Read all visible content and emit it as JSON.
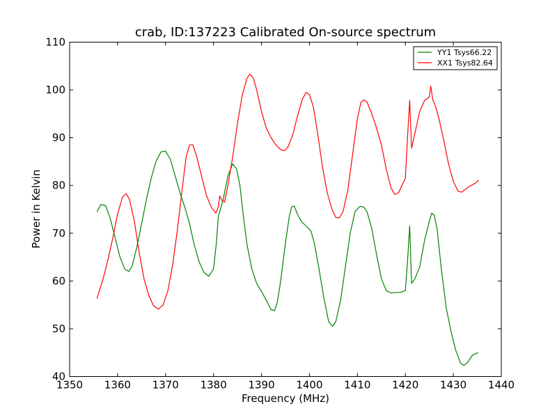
{
  "chart_data": {
    "type": "line",
    "title": "crab, ID:137223 Calibrated On-source spectrum",
    "xlabel": "Frequency (MHz)",
    "ylabel": "Power in Kelvin",
    "xlim": [
      1350,
      1440
    ],
    "ylim": [
      40,
      110
    ],
    "xticks": [
      1350,
      1360,
      1370,
      1380,
      1390,
      1400,
      1410,
      1420,
      1430,
      1440
    ],
    "yticks": [
      40,
      50,
      60,
      70,
      80,
      90,
      100,
      110
    ],
    "grid": false,
    "legend_position": "top-right",
    "series": [
      {
        "name": "YY1 Tsys66.22",
        "color": "#008000",
        "points": [
          [
            1355.7,
            74.5
          ],
          [
            1356.5,
            76.0
          ],
          [
            1357.5,
            75.8
          ],
          [
            1358.5,
            73.0
          ],
          [
            1359.5,
            69.0
          ],
          [
            1360.5,
            65.0
          ],
          [
            1361.5,
            62.5
          ],
          [
            1362.3,
            62.0
          ],
          [
            1363.0,
            63.0
          ],
          [
            1364.0,
            67.0
          ],
          [
            1365.0,
            72.0
          ],
          [
            1366.0,
            77.0
          ],
          [
            1367.0,
            81.5
          ],
          [
            1368.0,
            85.0
          ],
          [
            1369.0,
            87.0
          ],
          [
            1370.0,
            87.2
          ],
          [
            1371.0,
            85.5
          ],
          [
            1372.0,
            82.0
          ],
          [
            1373.0,
            78.5
          ],
          [
            1374.0,
            75.5
          ],
          [
            1375.0,
            72.0
          ],
          [
            1376.0,
            67.5
          ],
          [
            1377.0,
            64.0
          ],
          [
            1378.0,
            61.8
          ],
          [
            1379.0,
            61.0
          ],
          [
            1380.0,
            62.5
          ],
          [
            1380.6,
            68.0
          ],
          [
            1381.0,
            73.5
          ],
          [
            1382.0,
            77.0
          ],
          [
            1383.0,
            82.0
          ],
          [
            1384.0,
            84.5
          ],
          [
            1384.8,
            83.5
          ],
          [
            1385.5,
            80.0
          ],
          [
            1386.3,
            73.0
          ],
          [
            1387.0,
            67.5
          ],
          [
            1388.0,
            62.5
          ],
          [
            1389.0,
            59.5
          ],
          [
            1390.0,
            57.8
          ],
          [
            1391.0,
            56.0
          ],
          [
            1392.0,
            54.0
          ],
          [
            1392.7,
            53.8
          ],
          [
            1393.3,
            55.5
          ],
          [
            1394.0,
            60.0
          ],
          [
            1395.0,
            68.0
          ],
          [
            1395.8,
            73.5
          ],
          [
            1396.3,
            75.5
          ],
          [
            1396.8,
            75.7
          ],
          [
            1397.5,
            74.0
          ],
          [
            1398.3,
            72.5
          ],
          [
            1399.3,
            71.5
          ],
          [
            1400.3,
            70.5
          ],
          [
            1401.0,
            68.0
          ],
          [
            1402.0,
            62.5
          ],
          [
            1403.0,
            56.5
          ],
          [
            1404.0,
            51.5
          ],
          [
            1404.8,
            50.5
          ],
          [
            1405.5,
            51.5
          ],
          [
            1406.5,
            56.0
          ],
          [
            1407.5,
            63.0
          ],
          [
            1408.5,
            70.0
          ],
          [
            1409.5,
            74.5
          ],
          [
            1410.5,
            75.6
          ],
          [
            1411.3,
            75.5
          ],
          [
            1412.0,
            74.5
          ],
          [
            1413.0,
            71.0
          ],
          [
            1414.0,
            65.5
          ],
          [
            1415.0,
            60.5
          ],
          [
            1416.0,
            58.0
          ],
          [
            1417.0,
            57.5
          ],
          [
            1418.0,
            57.6
          ],
          [
            1419.0,
            57.6
          ],
          [
            1420.0,
            58.0
          ],
          [
            1420.5,
            65.0
          ],
          [
            1420.9,
            71.5
          ],
          [
            1421.3,
            59.5
          ],
          [
            1422.0,
            60.5
          ],
          [
            1423.0,
            63.0
          ],
          [
            1424.0,
            68.5
          ],
          [
            1425.0,
            72.5
          ],
          [
            1425.5,
            74.2
          ],
          [
            1426.0,
            73.8
          ],
          [
            1426.6,
            71.0
          ],
          [
            1427.5,
            62.5
          ],
          [
            1428.5,
            54.5
          ],
          [
            1429.5,
            49.5
          ],
          [
            1430.5,
            45.5
          ],
          [
            1431.5,
            42.8
          ],
          [
            1432.2,
            42.3
          ],
          [
            1433.0,
            43.0
          ],
          [
            1434.0,
            44.5
          ],
          [
            1435.2,
            45.0
          ]
        ]
      },
      {
        "name": "XX1 Tsys82.64",
        "color": "#ff0000",
        "points": [
          [
            1355.7,
            56.3
          ],
          [
            1357.0,
            60.5
          ],
          [
            1358.0,
            64.5
          ],
          [
            1359.0,
            69.0
          ],
          [
            1360.0,
            74.0
          ],
          [
            1361.0,
            77.5
          ],
          [
            1361.8,
            78.3
          ],
          [
            1362.5,
            77.0
          ],
          [
            1363.5,
            72.5
          ],
          [
            1364.5,
            66.0
          ],
          [
            1365.5,
            60.5
          ],
          [
            1366.5,
            57.0
          ],
          [
            1367.5,
            54.8
          ],
          [
            1368.5,
            54.1
          ],
          [
            1369.5,
            55.0
          ],
          [
            1370.5,
            58.0
          ],
          [
            1371.5,
            63.5
          ],
          [
            1372.5,
            71.0
          ],
          [
            1373.5,
            79.5
          ],
          [
            1374.3,
            86.0
          ],
          [
            1375.0,
            88.5
          ],
          [
            1375.7,
            88.5
          ],
          [
            1376.5,
            86.0
          ],
          [
            1377.5,
            82.0
          ],
          [
            1378.5,
            78.0
          ],
          [
            1379.5,
            75.5
          ],
          [
            1380.5,
            74.2
          ],
          [
            1381.0,
            75.5
          ],
          [
            1381.3,
            77.8
          ],
          [
            1381.8,
            76.8
          ],
          [
            1382.3,
            76.5
          ],
          [
            1383.0,
            80.0
          ],
          [
            1384.0,
            86.0
          ],
          [
            1385.0,
            93.0
          ],
          [
            1386.0,
            99.0
          ],
          [
            1387.0,
            102.5
          ],
          [
            1387.6,
            103.3
          ],
          [
            1388.3,
            102.5
          ],
          [
            1389.0,
            100.0
          ],
          [
            1390.0,
            95.5
          ],
          [
            1391.0,
            92.0
          ],
          [
            1392.0,
            90.0
          ],
          [
            1393.0,
            88.5
          ],
          [
            1394.0,
            87.5
          ],
          [
            1394.8,
            87.3
          ],
          [
            1395.5,
            88.0
          ],
          [
            1396.5,
            90.5
          ],
          [
            1397.5,
            94.5
          ],
          [
            1398.5,
            98.0
          ],
          [
            1399.3,
            99.5
          ],
          [
            1400.0,
            99.0
          ],
          [
            1400.8,
            96.5
          ],
          [
            1401.7,
            91.0
          ],
          [
            1402.7,
            84.0
          ],
          [
            1403.7,
            78.5
          ],
          [
            1404.7,
            75.0
          ],
          [
            1405.5,
            73.3
          ],
          [
            1406.2,
            73.2
          ],
          [
            1407.0,
            74.5
          ],
          [
            1408.0,
            79.0
          ],
          [
            1409.0,
            86.5
          ],
          [
            1410.0,
            94.0
          ],
          [
            1410.7,
            97.3
          ],
          [
            1411.3,
            97.9
          ],
          [
            1412.0,
            97.5
          ],
          [
            1413.0,
            95.0
          ],
          [
            1414.0,
            92.0
          ],
          [
            1415.0,
            88.5
          ],
          [
            1416.0,
            83.5
          ],
          [
            1417.0,
            79.5
          ],
          [
            1417.8,
            78.1
          ],
          [
            1418.6,
            78.5
          ],
          [
            1419.5,
            80.5
          ],
          [
            1420.0,
            81.5
          ],
          [
            1420.5,
            91.0
          ],
          [
            1420.9,
            97.8
          ],
          [
            1421.3,
            87.8
          ],
          [
            1422.0,
            91.0
          ],
          [
            1423.0,
            95.5
          ],
          [
            1424.0,
            97.8
          ],
          [
            1425.0,
            98.5
          ],
          [
            1425.3,
            100.8
          ],
          [
            1425.7,
            98.0
          ],
          [
            1426.3,
            96.5
          ],
          [
            1427.0,
            94.0
          ],
          [
            1428.0,
            89.5
          ],
          [
            1429.0,
            84.5
          ],
          [
            1430.0,
            80.8
          ],
          [
            1431.0,
            78.8
          ],
          [
            1431.8,
            78.6
          ],
          [
            1432.5,
            79.2
          ],
          [
            1433.5,
            79.9
          ],
          [
            1434.5,
            80.4
          ],
          [
            1435.3,
            81.1
          ]
        ]
      }
    ]
  }
}
